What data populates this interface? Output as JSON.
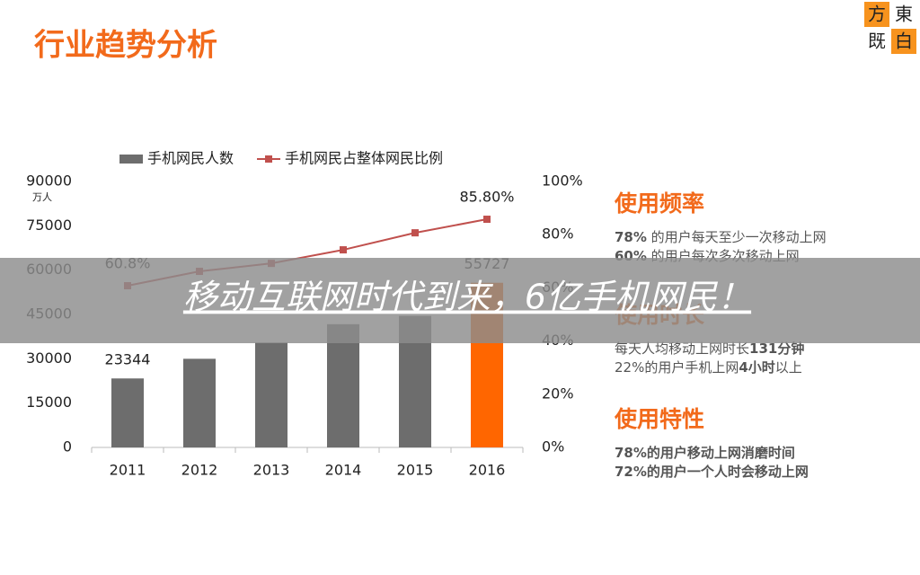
{
  "header": {
    "title": "行业趋势分析",
    "logo": [
      "方",
      "東",
      "既",
      "白"
    ]
  },
  "chart_data": {
    "type": "bar-line",
    "categories": [
      "2011",
      "2012",
      "2013",
      "2014",
      "2015",
      "2016"
    ],
    "series": [
      {
        "name": "手机网民人数",
        "type": "bar",
        "color": "#6d6d6d",
        "colors": [
          "#6d6d6d",
          "#6d6d6d",
          "#6d6d6d",
          "#6d6d6d",
          "#6d6d6d",
          "#ff6600"
        ],
        "values": [
          23344,
          30000,
          35500,
          41700,
          44500,
          55727
        ],
        "value_labels": [
          "23344",
          null,
          null,
          null,
          null,
          "55727"
        ]
      },
      {
        "name": "手机网民占整体网民比例",
        "type": "line",
        "axis": "y2",
        "color": "#c0504d",
        "values": [
          60.8,
          66.2,
          69.2,
          74.3,
          80.7,
          85.8
        ],
        "value_labels": [
          "60.8%",
          null,
          null,
          null,
          null,
          "85.80%"
        ]
      }
    ],
    "y_unit": "万人",
    "ylim": [
      0,
      90000
    ],
    "yticks": [
      0,
      15000,
      30000,
      45000,
      60000,
      75000,
      90000
    ],
    "y2lim": [
      0,
      100
    ],
    "y2ticks": [
      {
        "value": 0,
        "label": "0%"
      },
      {
        "value": 20,
        "label": "20%"
      },
      {
        "value": 40,
        "label": "40%"
      },
      {
        "value": 60,
        "label": "60%"
      },
      {
        "value": 80,
        "label": "80%"
      },
      {
        "value": 100,
        "label": "100%"
      }
    ],
    "legend": "top"
  },
  "panel": [
    {
      "heading": "使用频率",
      "lines": [
        [
          {
            "t": "78%",
            "b": true
          },
          {
            "t": " 的用户每天至少一次移动上网",
            "b": false
          }
        ],
        [
          {
            "t": "60%",
            "b": true
          },
          {
            "t": " 的用户每次多次移动上网",
            "b": false
          }
        ]
      ]
    },
    {
      "heading": "使用时长",
      "lines": [
        [
          {
            "t": "每天人均移动上网时长",
            "b": false
          },
          {
            "t": "131分钟",
            "b": true
          }
        ],
        [
          {
            "t": "22%",
            "b": false
          },
          {
            "t": "的用户手机上网",
            "b": false
          },
          {
            "t": "4小时",
            "b": true
          },
          {
            "t": "以上",
            "b": false
          }
        ]
      ]
    },
    {
      "heading": "使用特性",
      "lines": [
        [
          {
            "t": "78%",
            "b": true
          },
          {
            "t": "的用户移动上网消磨时间",
            "b": true
          }
        ],
        [
          {
            "t": "72%",
            "b": true
          },
          {
            "t": "的用户一个人时会移动上网",
            "b": true
          }
        ]
      ]
    }
  ],
  "banner": "移动互联网时代到来，6亿手机网民！"
}
